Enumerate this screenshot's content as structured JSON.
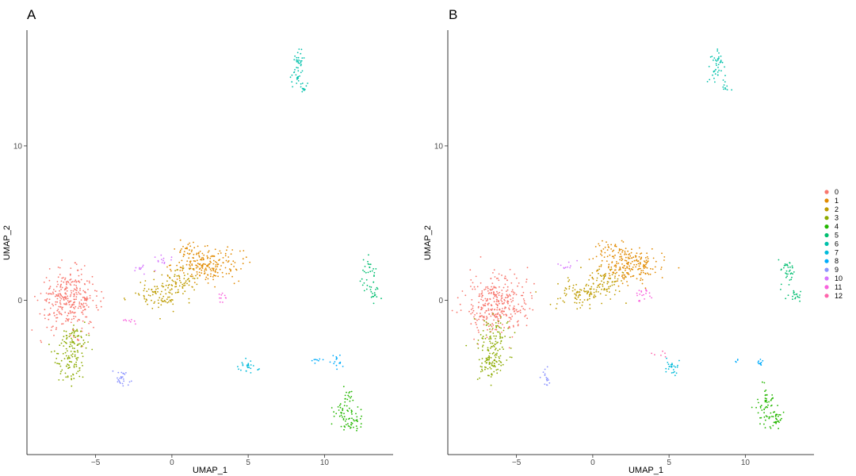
{
  "panels": [
    {
      "label": "A",
      "xlabel": "UMAP_1",
      "ylabel": "UMAP_2"
    },
    {
      "label": "B",
      "xlabel": "UMAP_1",
      "ylabel": "UMAP_2"
    }
  ],
  "legend": {
    "labels": [
      "0",
      "1",
      "2",
      "3",
      "4",
      "5",
      "6",
      "7",
      "8",
      "9",
      "10",
      "11",
      "12"
    ],
    "colors": [
      "#F8766D",
      "#E18A00",
      "#BE9C00",
      "#8CAB00",
      "#24B700",
      "#00BE70",
      "#00C1AB",
      "#00BBDA",
      "#00ACFC",
      "#8B93FF",
      "#D575FE",
      "#F962DD",
      "#FF65AC"
    ]
  },
  "chart_data": [
    {
      "type": "scatter",
      "title": "",
      "panel": "A",
      "xlabel": "UMAP_1",
      "ylabel": "UMAP_2",
      "xlim": [
        -9.5,
        14.5
      ],
      "ylim": [
        -10,
        17.5
      ],
      "xticks": [
        -5,
        0,
        5,
        10
      ],
      "xtick_labels": [
        "−5",
        "0",
        "5",
        "10"
      ],
      "yticks": [
        0,
        10
      ],
      "ytick_labels": [
        "0",
        "10"
      ],
      "grid": false,
      "legend": "right",
      "series": [
        {
          "name": "0",
          "blobs": [
            {
              "x": -6.7,
              "y": 0.0,
              "sx": 0.95,
              "sy": 0.95,
              "n": 320
            }
          ]
        },
        {
          "name": "1",
          "blobs": [
            {
              "x": 2.3,
              "y": 2.3,
              "sx": 1.1,
              "sy": 0.55,
              "n": 200
            },
            {
              "x": 1.0,
              "y": 3.3,
              "sx": 0.4,
              "sy": 0.3,
              "n": 25
            }
          ]
        },
        {
          "name": "2",
          "blobs": [
            {
              "x": -0.8,
              "y": 0.3,
              "sx": 0.9,
              "sy": 0.5,
              "n": 90
            },
            {
              "x": 0.6,
              "y": 1.4,
              "sx": 0.6,
              "sy": 0.5,
              "n": 60
            }
          ]
        },
        {
          "name": "3",
          "blobs": [
            {
              "x": -6.3,
              "y": -2.6,
              "sx": 0.55,
              "sy": 0.6,
              "n": 80
            },
            {
              "x": -6.7,
              "y": -4.2,
              "sx": 0.4,
              "sy": 0.55,
              "n": 70
            }
          ]
        },
        {
          "name": "4",
          "blobs": [
            {
              "x": 11.4,
              "y": -7.2,
              "sx": 0.4,
              "sy": 0.5,
              "n": 40
            },
            {
              "x": 11.9,
              "y": -7.9,
              "sx": 0.35,
              "sy": 0.3,
              "n": 30
            },
            {
              "x": 11.6,
              "y": -6.3,
              "sx": 0.2,
              "sy": 0.45,
              "n": 15
            }
          ]
        },
        {
          "name": "5",
          "blobs": [
            {
              "x": 12.9,
              "y": 1.7,
              "sx": 0.25,
              "sy": 0.5,
              "n": 30
            },
            {
              "x": 13.3,
              "y": 0.4,
              "sx": 0.25,
              "sy": 0.25,
              "n": 18
            }
          ]
        },
        {
          "name": "6",
          "blobs": [
            {
              "x": 8.3,
              "y": 15.5,
              "sx": 0.2,
              "sy": 0.35,
              "n": 25
            },
            {
              "x": 8.2,
              "y": 14.5,
              "sx": 0.25,
              "sy": 0.3,
              "n": 20
            },
            {
              "x": 8.7,
              "y": 13.7,
              "sx": 0.2,
              "sy": 0.15,
              "n": 10
            }
          ]
        },
        {
          "name": "7",
          "blobs": [
            {
              "x": 5.0,
              "y": -4.3,
              "sx": 0.35,
              "sy": 0.25,
              "n": 25
            }
          ]
        },
        {
          "name": "8",
          "blobs": [
            {
              "x": 10.8,
              "y": -4.0,
              "sx": 0.2,
              "sy": 0.25,
              "n": 15
            },
            {
              "x": 9.6,
              "y": -3.9,
              "sx": 0.2,
              "sy": 0.08,
              "n": 8
            }
          ]
        },
        {
          "name": "9",
          "blobs": [
            {
              "x": -3.3,
              "y": -5.1,
              "sx": 0.25,
              "sy": 0.3,
              "n": 25
            }
          ]
        },
        {
          "name": "10",
          "blobs": [
            {
              "x": -0.6,
              "y": 2.6,
              "sx": 0.35,
              "sy": 0.2,
              "n": 12
            },
            {
              "x": -2.0,
              "y": 2.0,
              "sx": 0.6,
              "sy": 0.15,
              "n": 10
            }
          ]
        },
        {
          "name": "11",
          "blobs": [
            {
              "x": 3.4,
              "y": 0.2,
              "sx": 0.2,
              "sy": 0.2,
              "n": 10
            },
            {
              "x": -2.8,
              "y": -1.4,
              "sx": 0.3,
              "sy": 0.1,
              "n": 8
            }
          ]
        },
        {
          "name": "12",
          "blobs": [
            {
              "x": -1.5,
              "y": -1.5,
              "sx": 0.2,
              "sy": 0.2,
              "n": 0
            }
          ]
        }
      ]
    },
    {
      "type": "scatter",
      "title": "",
      "panel": "B",
      "xlabel": "UMAP_1",
      "ylabel": "UMAP_2",
      "xlim": [
        -9.5,
        14.5
      ],
      "ylim": [
        -10,
        17.5
      ],
      "xticks": [
        -5,
        0,
        5,
        10
      ],
      "xtick_labels": [
        "−5",
        "0",
        "5",
        "10"
      ],
      "yticks": [
        0,
        10
      ],
      "ytick_labels": [
        "0",
        "10"
      ],
      "grid": false,
      "legend": "right",
      "series": [
        {
          "name": "0",
          "blobs": [
            {
              "x": -6.3,
              "y": -0.2,
              "sx": 1.0,
              "sy": 0.95,
              "n": 340
            }
          ]
        },
        {
          "name": "1",
          "blobs": [
            {
              "x": 2.5,
              "y": 2.3,
              "sx": 1.0,
              "sy": 0.6,
              "n": 210
            },
            {
              "x": 1.0,
              "y": 3.3,
              "sx": 0.4,
              "sy": 0.3,
              "n": 25
            }
          ]
        },
        {
          "name": "2",
          "blobs": [
            {
              "x": -0.7,
              "y": 0.5,
              "sx": 0.9,
              "sy": 0.5,
              "n": 100
            },
            {
              "x": 0.8,
              "y": 1.2,
              "sx": 0.6,
              "sy": 0.5,
              "n": 60
            }
          ]
        },
        {
          "name": "3",
          "blobs": [
            {
              "x": -6.4,
              "y": -2.5,
              "sx": 0.55,
              "sy": 0.7,
              "n": 90
            },
            {
              "x": -6.7,
              "y": -4.1,
              "sx": 0.4,
              "sy": 0.55,
              "n": 80
            }
          ]
        },
        {
          "name": "4",
          "blobs": [
            {
              "x": 11.3,
              "y": -7.0,
              "sx": 0.4,
              "sy": 0.45,
              "n": 40
            },
            {
              "x": 11.9,
              "y": -7.8,
              "sx": 0.35,
              "sy": 0.3,
              "n": 35
            },
            {
              "x": 11.5,
              "y": -6.1,
              "sx": 0.2,
              "sy": 0.4,
              "n": 12
            }
          ]
        },
        {
          "name": "5",
          "blobs": [
            {
              "x": 12.8,
              "y": 1.8,
              "sx": 0.25,
              "sy": 0.5,
              "n": 35
            },
            {
              "x": 13.3,
              "y": 0.3,
              "sx": 0.25,
              "sy": 0.2,
              "n": 18
            }
          ]
        },
        {
          "name": "6",
          "blobs": [
            {
              "x": 8.1,
              "y": 15.5,
              "sx": 0.2,
              "sy": 0.35,
              "n": 25
            },
            {
              "x": 8.2,
              "y": 14.6,
              "sx": 0.25,
              "sy": 0.3,
              "n": 18
            },
            {
              "x": 8.7,
              "y": 13.8,
              "sx": 0.2,
              "sy": 0.15,
              "n": 8
            }
          ]
        },
        {
          "name": "7",
          "blobs": [
            {
              "x": 5.1,
              "y": -4.4,
              "sx": 0.25,
              "sy": 0.3,
              "n": 25
            }
          ]
        },
        {
          "name": "8",
          "blobs": [
            {
              "x": 11.0,
              "y": -4.0,
              "sx": 0.12,
              "sy": 0.2,
              "n": 10
            },
            {
              "x": 9.3,
              "y": -3.9,
              "sx": 0.15,
              "sy": 0.08,
              "n": 4
            }
          ]
        },
        {
          "name": "9",
          "blobs": [
            {
              "x": -3.1,
              "y": -5.0,
              "sx": 0.15,
              "sy": 0.3,
              "n": 15
            }
          ]
        },
        {
          "name": "10",
          "blobs": [
            {
              "x": -1.8,
              "y": 2.3,
              "sx": 0.4,
              "sy": 0.2,
              "n": 10
            }
          ]
        },
        {
          "name": "11",
          "blobs": [
            {
              "x": 3.4,
              "y": 0.3,
              "sx": 0.25,
              "sy": 0.25,
              "n": 20
            }
          ]
        },
        {
          "name": "12",
          "blobs": [
            {
              "x": 4.4,
              "y": -3.5,
              "sx": 0.3,
              "sy": 0.2,
              "n": 6
            }
          ]
        }
      ]
    }
  ]
}
